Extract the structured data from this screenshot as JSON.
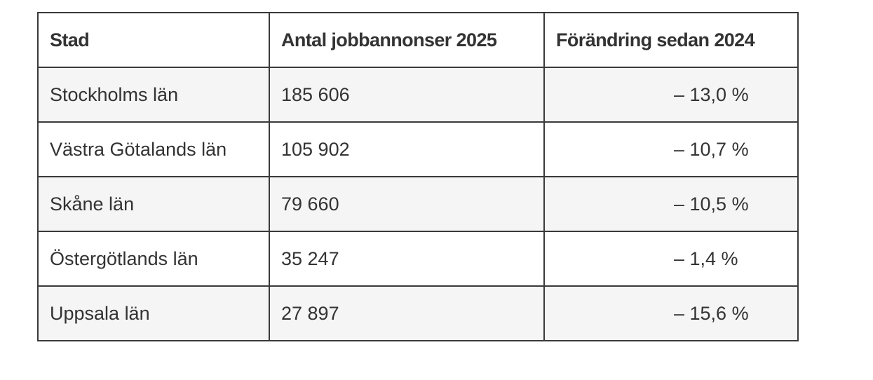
{
  "table": {
    "header": [
      "Stad",
      "Antal jobbannonser 2025",
      "Förändring sedan 2024"
    ],
    "rows": [
      [
        "Stockholms län",
        "185 606",
        "– 13,0 %"
      ],
      [
        "Västra Götalands län",
        "105 902",
        "– 10,7 %"
      ],
      [
        "Skåne län",
        "79 660",
        "– 10,5 %"
      ],
      [
        "Östergötlands län",
        "35 247",
        "– 1,4 %"
      ],
      [
        "Uppsala län",
        "27 897",
        "– 15,6 %"
      ]
    ]
  }
}
